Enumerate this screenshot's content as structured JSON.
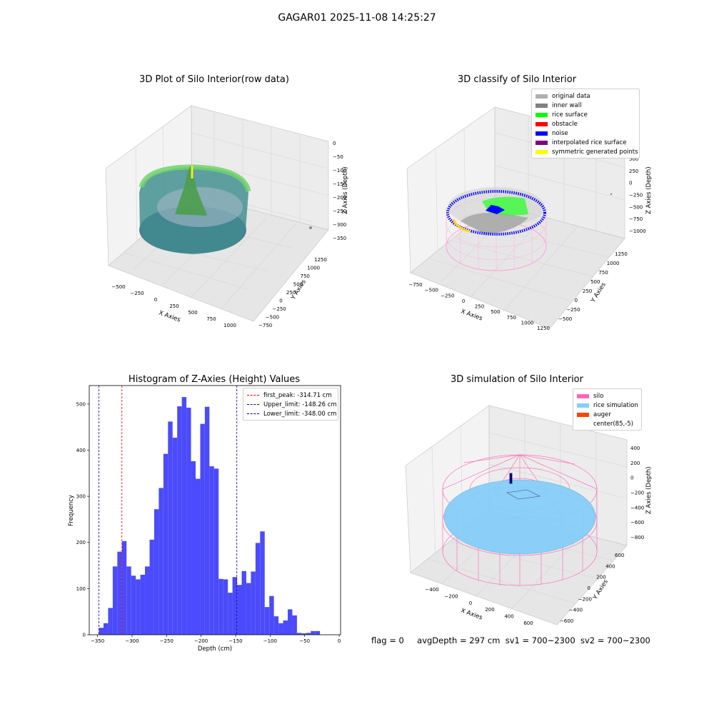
{
  "figure_title": "GAGAR01 2025-11-08 14:25:27",
  "colors": {
    "hist_bar": "#4b4bfb",
    "silo": "#ff69b4",
    "rice_sim": "#87cefa",
    "auger": "#ff4500"
  },
  "panels": {
    "raw": {
      "title": "3D Plot of Silo Interior(row data)",
      "xlabel": "X Axies",
      "ylabel": "Y Axies",
      "zlabel": "Z Axies (Depth)",
      "x_ticks": [
        "−500",
        "−250",
        "0",
        "250",
        "500",
        "750",
        "1000"
      ],
      "y_ticks": [
        "−750",
        "−500",
        "−250",
        "0",
        "250",
        "500",
        "750",
        "1000",
        "1250"
      ],
      "z_ticks": [
        "0",
        "−50",
        "−100",
        "−150",
        "−200",
        "−250",
        "−300",
        "−350"
      ]
    },
    "classify": {
      "title": "3D classify of Silo Interior",
      "xlabel": "X Axies",
      "ylabel": "Y Axies",
      "zlabel": "Z Axies (Depth)",
      "x_ticks": [
        "−750",
        "−500",
        "−250",
        "0",
        "250",
        "500",
        "750",
        "1000",
        "1250"
      ],
      "y_ticks": [
        "−500",
        "−250",
        "0",
        "250",
        "500",
        "750",
        "1000",
        "1250"
      ],
      "z_ticks": [
        "500",
        "250",
        "0",
        "−250",
        "−500",
        "−750",
        "−1000"
      ],
      "z_partial_tick": "00",
      "legend": [
        {
          "label": "original data",
          "color": "#b0b0b0"
        },
        {
          "label": "inner wall",
          "color": "#808080"
        },
        {
          "label": "rice surface",
          "color": "#00ff00"
        },
        {
          "label": "obstacle",
          "color": "#ff0000"
        },
        {
          "label": "noise",
          "color": "#0000ff"
        },
        {
          "label": "interpolated rice surface",
          "color": "#800080"
        },
        {
          "label": "symmetric generated points",
          "color": "#ffff00"
        }
      ]
    },
    "histogram": {
      "title": "Histogram of Z-Axies (Height) Values",
      "legend": [
        {
          "label": "first_peak: -314.71 cm",
          "color": "#ff0000"
        },
        {
          "label": "Upper_limit: -148.26 cm",
          "color": "#0000aa"
        },
        {
          "label": "Lower_limit: -348.00 cm",
          "color": "#0000aa"
        }
      ]
    },
    "simulation": {
      "title": "3D simulation of Silo Interior",
      "xlabel": "X Axies",
      "ylabel": "Y Axies",
      "zlabel": "Z Axies (Depth)",
      "x_ticks": [
        "−400",
        "−200",
        "0",
        "200",
        "400",
        "600"
      ],
      "y_ticks": [
        "−600",
        "−400",
        "−200",
        "0",
        "200",
        "400",
        "600"
      ],
      "z_ticks": [
        "400",
        "200",
        "0",
        "−200",
        "−400",
        "−600",
        "−800"
      ],
      "legend": [
        {
          "label": "silo",
          "color": "#ff69b4"
        },
        {
          "label": "rice simulation",
          "color": "#87cefa"
        },
        {
          "label": "auger",
          "color": "#ff4500"
        },
        {
          "label": "center(85,-5)",
          "color": "#ffffff"
        }
      ]
    }
  },
  "footer": {
    "flag": "flag = 0",
    "avg_depth": "avgDepth = 297 cm",
    "sv1": "sv1 = 700~2300",
    "sv2": "sv2 = 700~2300"
  },
  "chart_data": [
    {
      "type": "bar",
      "title": "Histogram of Z-Axies (Height) Values",
      "xlabel": "Depth (cm)",
      "ylabel": "Frequency",
      "xlim": [
        -362,
        2
      ],
      "ylim": [
        0,
        540
      ],
      "x_ticks": [
        -350,
        -300,
        -250,
        -200,
        -150,
        -100,
        -50,
        0
      ],
      "x_tick_labels": [
        "−350",
        "−300",
        "−250",
        "−200",
        "−150",
        "−100",
        "−50",
        "0"
      ],
      "y_ticks": [
        0,
        100,
        200,
        300,
        400,
        500
      ],
      "bin_start": -348,
      "bin_width": 6.67,
      "values": [
        15,
        25,
        58,
        148,
        180,
        203,
        148,
        128,
        120,
        130,
        148,
        206,
        272,
        318,
        392,
        462,
        427,
        495,
        515,
        492,
        376,
        338,
        457,
        494,
        365,
        360,
        121,
        120,
        91,
        125,
        108,
        138,
        112,
        137,
        199,
        224,
        60,
        84,
        40,
        25,
        31,
        55,
        42,
        4,
        3,
        4,
        8,
        8
      ],
      "vlines": [
        {
          "name": "first_peak",
          "x": -314.71,
          "color": "#ff0000"
        },
        {
          "name": "Upper_limit",
          "x": -148.26,
          "color": "#0000aa"
        },
        {
          "name": "Lower_limit",
          "x": -348.0,
          "color": "#0000aa"
        }
      ],
      "grid": false,
      "legend_position": "top-right"
    }
  ]
}
